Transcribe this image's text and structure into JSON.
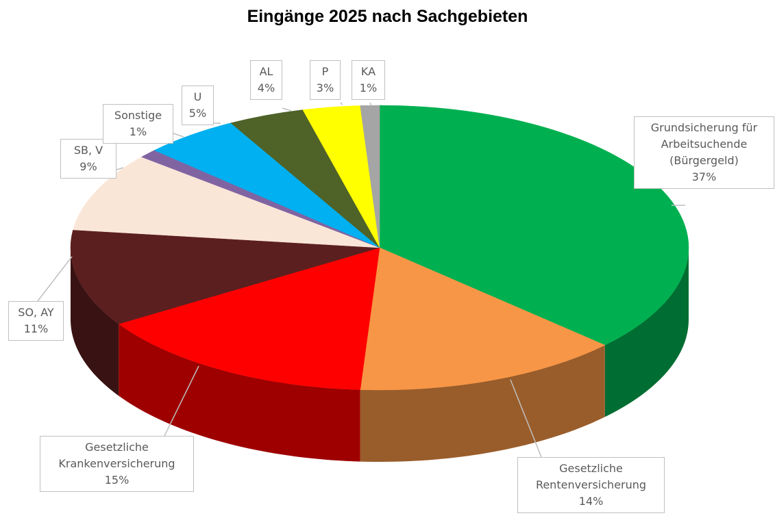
{
  "chart_data": {
    "type": "pie3d",
    "title": "Eingänge 2025 nach Sachgebieten",
    "categories": [
      "Grundsicherung für Arbeitsuchende (Bürgergeld)",
      "Gesetzliche Rentenversicherung",
      "Gesetzliche Krankenversicherung",
      "SO, AY",
      "SB, V",
      "Sonstige",
      "U",
      "AL",
      "P",
      "KA"
    ],
    "values": [
      37,
      14,
      15,
      11,
      9,
      1,
      5,
      4,
      3,
      1
    ],
    "value_labels": [
      "37%",
      "14%",
      "15%",
      "11%",
      "9%",
      "1%",
      "5%",
      "4%",
      "3%",
      "1%"
    ],
    "colors": [
      "#00b050",
      "#f79646",
      "#ff0000",
      "#5c1f1f",
      "#fae6d7",
      "#8064a2",
      "#00b0f0",
      "#4f6228",
      "#ffff00",
      "#a5a5a5"
    ]
  }
}
